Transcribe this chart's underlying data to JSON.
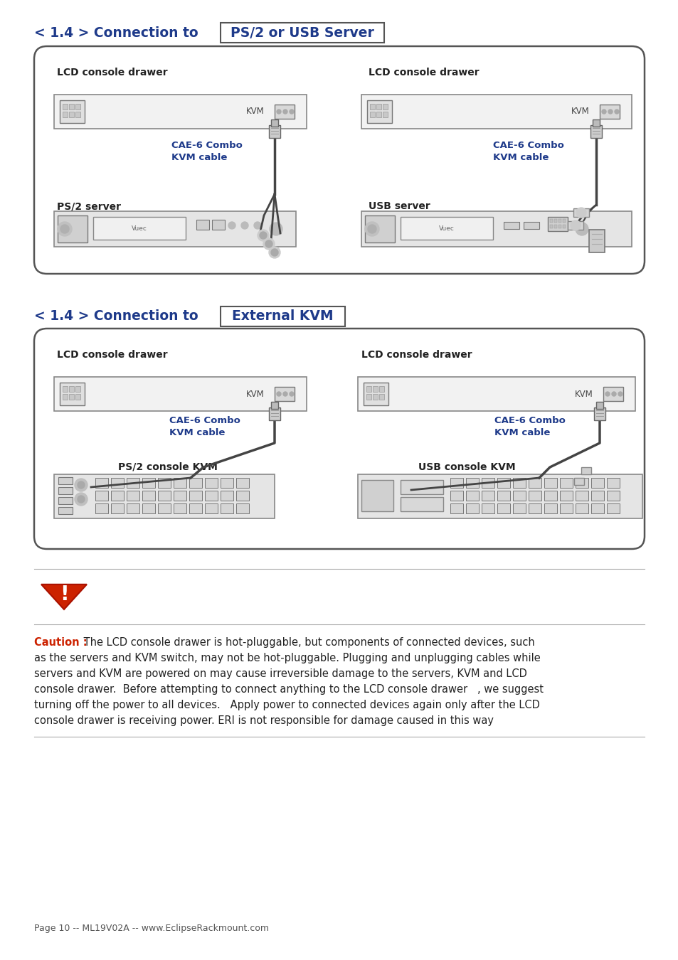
{
  "title1_plain": "< 1.4 > Connection to",
  "title1_box": "PS/2 or USB Server",
  "title2_plain": "< 1.4 > Connection to",
  "title2_box": "External KVM",
  "s1_left_label": "LCD console drawer",
  "s1_right_label": "LCD console drawer",
  "s1_left_server_label": "PS/2 server",
  "s1_right_server_label": "USB server",
  "s1_left_cable": "CAE-6 Combo\nKVM cable",
  "s1_right_cable": "CAE-6 Combo\nKVM cable",
  "s2_left_label": "LCD console drawer",
  "s2_right_label": "LCD console drawer",
  "s2_left_kvm_label": "PS/2 console KVM",
  "s2_right_kvm_label": "USB console KVM",
  "s2_left_cable": "CAE-6 Combo\nKVM cable",
  "s2_right_cable": "CAE-6 Combo\nKVM cable",
  "caution_bold": "Caution :",
  "caution_line1_rest": " The LCD console drawer is hot-pluggable, but components of connected devices, such",
  "caution_line2": "as the servers and KVM switch, may not be hot-pluggable. Plugging and unplugging cables while",
  "caution_line3": "servers and KVM are powered on may cause irreversible damage to the servers, KVM and LCD",
  "caution_line4": "console drawer.  Before attempting to connect anything to the LCD console drawer   , we suggest",
  "caution_line5": "turning off the power to all devices.   Apply power to connected devices again only after the LCD",
  "caution_line6": "console drawer is receiving power. ERI is not responsible for damage caused in this way",
  "footer": "Page 10 -- ML19V02A -- www.EclipseRackmount.com",
  "bg": "#ffffff",
  "title_color": "#1e3a8a",
  "cable_color": "#1e3a8a",
  "outer_border": "#555555",
  "inner_border": "#888888",
  "caution_red": "#cc2200",
  "text_dark": "#222222",
  "text_gray": "#555555",
  "kvm_fill": "#f0f0f0",
  "server_fill": "#e0e0e0",
  "connector_fill": "#cccccc"
}
